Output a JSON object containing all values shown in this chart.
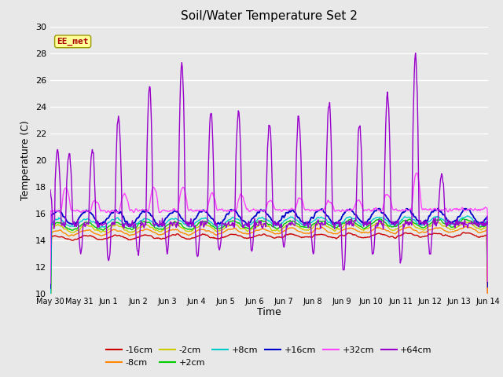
{
  "title": "Soil/Water Temperature Set 2",
  "xlabel": "Time",
  "ylabel": "Temperature (C)",
  "ylim": [
    10,
    30
  ],
  "yticks": [
    10,
    12,
    14,
    16,
    18,
    20,
    22,
    24,
    26,
    28,
    30
  ],
  "bg_color": "#e8e8e8",
  "series": {
    "-16cm": {
      "color": "#cc0000",
      "lw": 1.0
    },
    "-8cm": {
      "color": "#ff8800",
      "lw": 1.0
    },
    "-2cm": {
      "color": "#cccc00",
      "lw": 1.0
    },
    "+2cm": {
      "color": "#00cc00",
      "lw": 1.0
    },
    "+8cm": {
      "color": "#00cccc",
      "lw": 1.0
    },
    "+16cm": {
      "color": "#0000cc",
      "lw": 1.3
    },
    "+32cm": {
      "color": "#ff44ff",
      "lw": 1.0
    },
    "+64cm": {
      "color": "#9900cc",
      "lw": 1.0
    }
  },
  "annotation_text": "EE_met",
  "annotation_color": "#aa0000",
  "annotation_bg": "#ffff99",
  "annotation_border": "#999900",
  "n_days": 15,
  "pts_per_day": 48,
  "legend_ncol_row1": 6,
  "start_day": "May 30"
}
